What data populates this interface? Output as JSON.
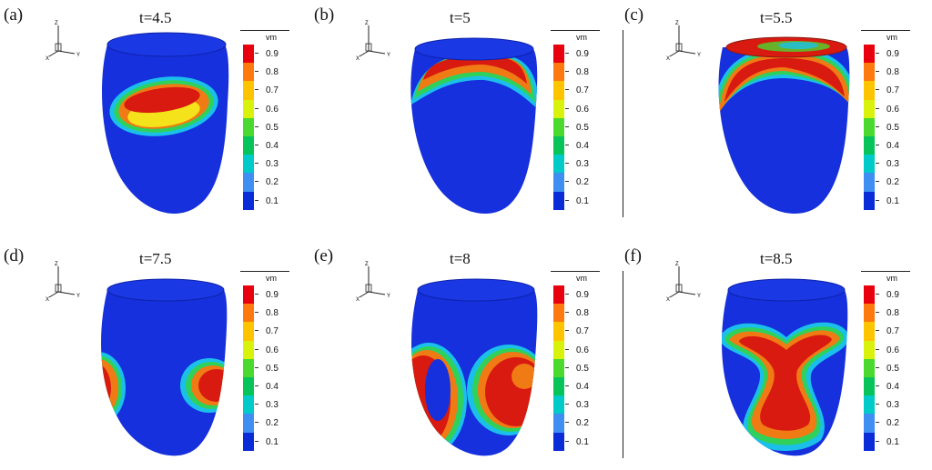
{
  "colorbar": {
    "title": "vm",
    "ticks": [
      "0.9",
      "0.8",
      "0.7",
      "0.6",
      "0.5",
      "0.4",
      "0.3",
      "0.2",
      "0.1"
    ],
    "colors": [
      "#e8000e",
      "#ff7a0e",
      "#ffc400",
      "#d9f20b",
      "#4bd82f",
      "#06c45a",
      "#00cbc8",
      "#3f8ff2",
      "#0a2bd8"
    ]
  },
  "heart_colors": {
    "tissue": "#1530dc",
    "activation_core": "#d81a10",
    "orange_band": "#f07a14",
    "yellow_band": "#f4e31a",
    "green_band": "#2fd15a",
    "cyan_band": "#1bc0ea"
  },
  "panels": [
    {
      "label": "(a)",
      "time": "t=4.5"
    },
    {
      "label": "(b)",
      "time": "t=5"
    },
    {
      "label": "(c)",
      "time": "t=5.5"
    },
    {
      "label": "(d)",
      "time": "t=7.5"
    },
    {
      "label": "(e)",
      "time": "t=8"
    },
    {
      "label": "(f)",
      "time": "t=8.5"
    }
  ],
  "axes": {
    "z": "Z",
    "x": "X",
    "y": "Y"
  }
}
